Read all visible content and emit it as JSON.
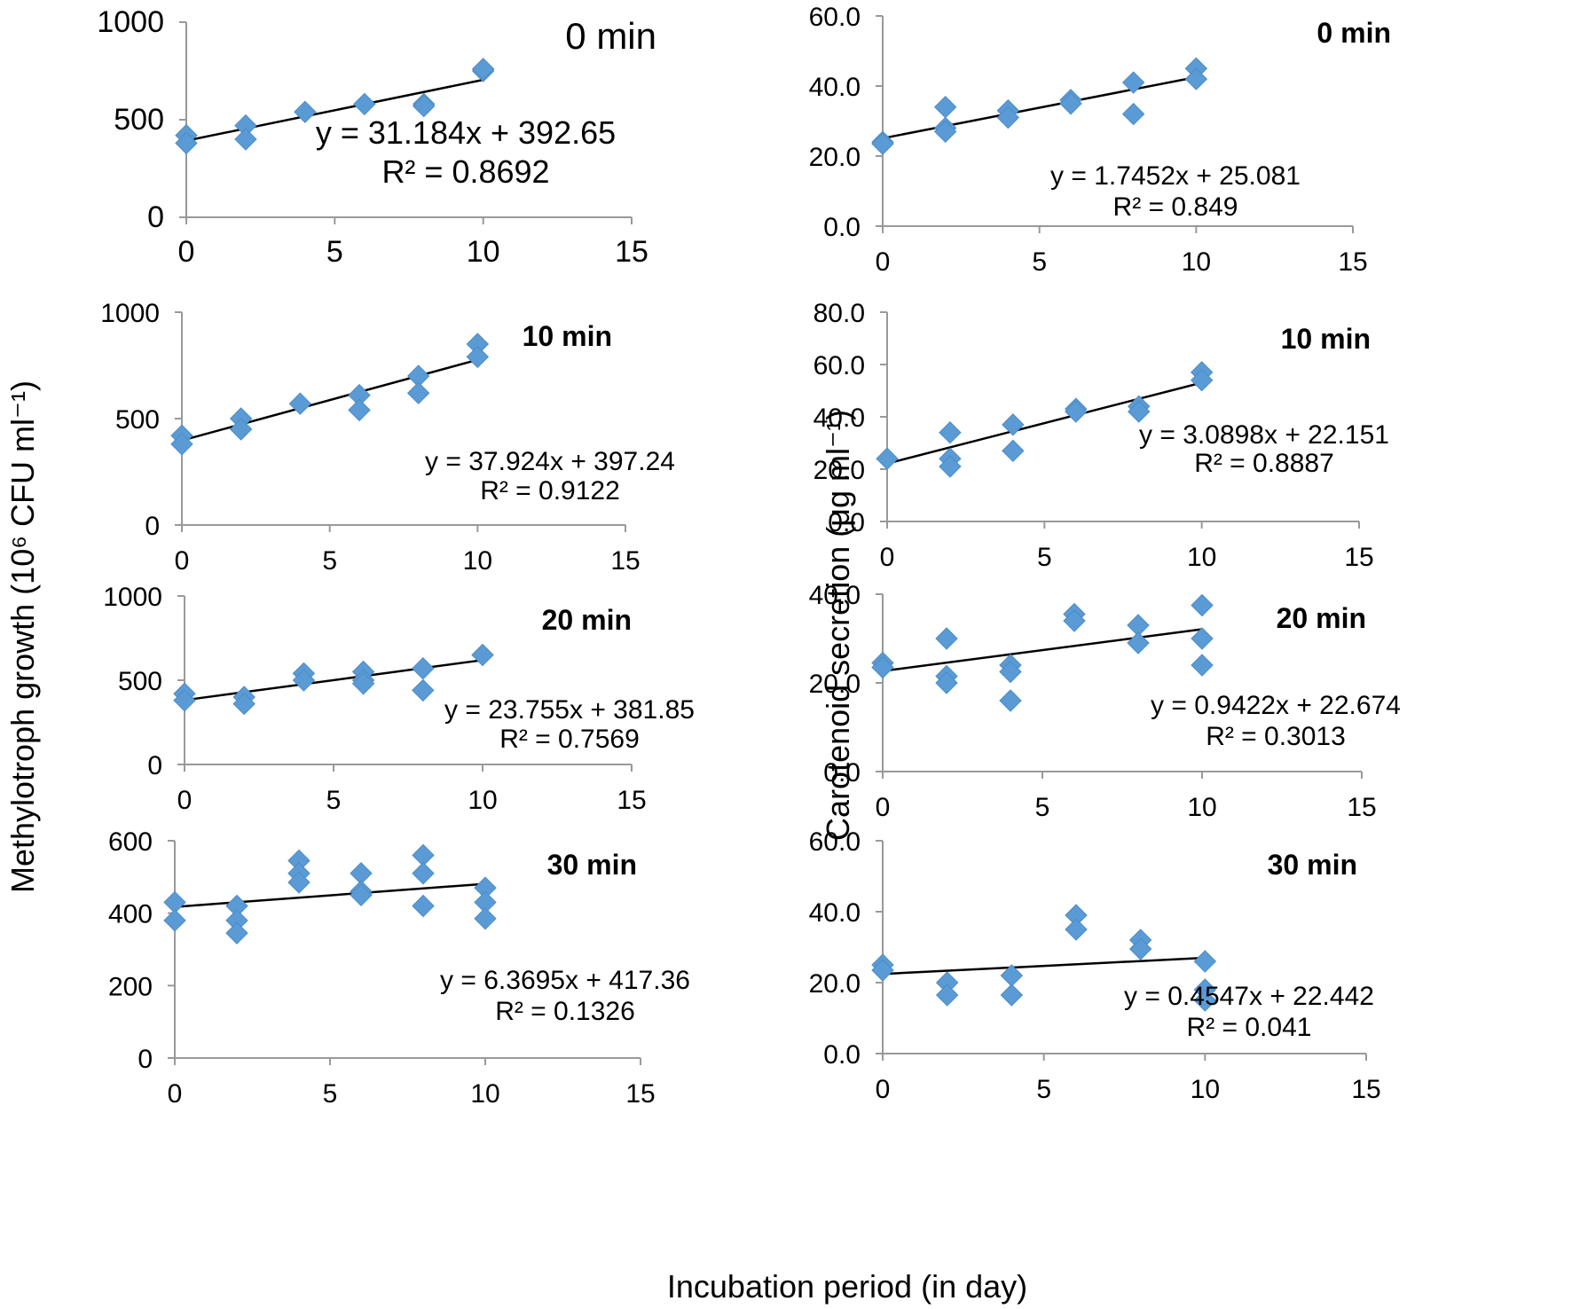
{
  "chart_data": {
    "type": "scatter",
    "shared_labels": {
      "xlabel": "Incubation period (in day)",
      "ylabel_left": "Methylotroph growth (10⁶ CFU ml⁻¹)",
      "ylabel_right": "Carotenoid secretion (μg ml⁻¹)"
    },
    "marker_color": "#5b9bd5",
    "trendline_color": "#000000",
    "panels": [
      {
        "id": "growth-0",
        "title": "0 min",
        "xlim": [
          0,
          15
        ],
        "xticks": [
          "0",
          "5",
          "10",
          "15"
        ],
        "ylim": [
          0,
          1000
        ],
        "yticks": [
          "0",
          "500",
          "1000"
        ],
        "points": [
          [
            0,
            420
          ],
          [
            0,
            380
          ],
          [
            2,
            470
          ],
          [
            2,
            400
          ],
          [
            4,
            540
          ],
          [
            6,
            580
          ],
          [
            8,
            580
          ],
          [
            8,
            570
          ],
          [
            10,
            750
          ],
          [
            10,
            760
          ]
        ],
        "fit": {
          "slope": 31.184,
          "intercept": 392.65
        },
        "equation": "y = 31.184x + 392.65",
        "r2_label": "R² = 0.8692"
      },
      {
        "id": "carotenoid-0",
        "title": "0 min",
        "xlim": [
          0,
          15
        ],
        "xticks": [
          "0",
          "5",
          "10",
          "15"
        ],
        "ylim": [
          0,
          60
        ],
        "yticks": [
          "0.0",
          "20.0",
          "40.0",
          "60.0"
        ],
        "points": [
          [
            0,
            24
          ],
          [
            0,
            23.5
          ],
          [
            2,
            34
          ],
          [
            2,
            28
          ],
          [
            2,
            27
          ],
          [
            4,
            33
          ],
          [
            4,
            31
          ],
          [
            6,
            36
          ],
          [
            6,
            35
          ],
          [
            8,
            41
          ],
          [
            8,
            32
          ],
          [
            10,
            45
          ],
          [
            10,
            42
          ]
        ],
        "fit": {
          "slope": 1.7452,
          "intercept": 25.081
        },
        "equation": "y = 1.7452x + 25.081",
        "r2_label": "R² = 0.849"
      },
      {
        "id": "growth-10",
        "title": "10 min",
        "xlim": [
          0,
          15
        ],
        "xticks": [
          "0",
          "5",
          "10",
          "15"
        ],
        "ylim": [
          0,
          1000
        ],
        "yticks": [
          "0",
          "500",
          "1000"
        ],
        "points": [
          [
            0,
            420
          ],
          [
            0,
            380
          ],
          [
            2,
            500
          ],
          [
            2,
            450
          ],
          [
            4,
            570
          ],
          [
            6,
            610
          ],
          [
            6,
            540
          ],
          [
            8,
            700
          ],
          [
            8,
            620
          ],
          [
            10,
            850
          ],
          [
            10,
            790
          ]
        ],
        "fit": {
          "slope": 37.924,
          "intercept": 397.24
        },
        "equation": "y = 37.924x + 397.24",
        "r2_label": "R² = 0.9122"
      },
      {
        "id": "carotenoid-10",
        "title": "10 min",
        "xlim": [
          0,
          15
        ],
        "xticks": [
          "0",
          "5",
          "10",
          "15"
        ],
        "ylim": [
          0,
          80
        ],
        "yticks": [
          "0.0",
          "20.0",
          "40.0",
          "60.0",
          "80.0"
        ],
        "points": [
          [
            0,
            24
          ],
          [
            2,
            34
          ],
          [
            2,
            24
          ],
          [
            2,
            21
          ],
          [
            4,
            37
          ],
          [
            4,
            27
          ],
          [
            6,
            43
          ],
          [
            6,
            42
          ],
          [
            8,
            44
          ],
          [
            8,
            42
          ],
          [
            10,
            57
          ],
          [
            10,
            54
          ]
        ],
        "fit": {
          "slope": 3.0898,
          "intercept": 22.151
        },
        "equation": "y = 3.0898x + 22.151",
        "r2_label": "R² = 0.8887"
      },
      {
        "id": "growth-20",
        "title": "20 min",
        "xlim": [
          0,
          15
        ],
        "xticks": [
          "0",
          "5",
          "10",
          "15"
        ],
        "ylim": [
          0,
          1000
        ],
        "yticks": [
          "0",
          "500",
          "1000"
        ],
        "points": [
          [
            0,
            420
          ],
          [
            0,
            380
          ],
          [
            2,
            400
          ],
          [
            2,
            360
          ],
          [
            4,
            540
          ],
          [
            4,
            500
          ],
          [
            6,
            550
          ],
          [
            6,
            500
          ],
          [
            6,
            480
          ],
          [
            8,
            570
          ],
          [
            8,
            440
          ],
          [
            10,
            650
          ]
        ],
        "fit": {
          "slope": 23.755,
          "intercept": 381.85
        },
        "equation": "y = 23.755x + 381.85",
        "r2_label": "R² = 0.7569"
      },
      {
        "id": "carotenoid-20",
        "title": "20 min",
        "xlim": [
          0,
          15
        ],
        "xticks": [
          "0",
          "5",
          "10",
          "15"
        ],
        "ylim": [
          0,
          40
        ],
        "yticks": [
          "0.0",
          "20.0",
          "40.0"
        ],
        "points": [
          [
            0,
            24.5
          ],
          [
            0,
            23.5
          ],
          [
            2,
            30
          ],
          [
            2,
            21.5
          ],
          [
            2,
            20
          ],
          [
            4,
            24
          ],
          [
            4,
            22.5
          ],
          [
            4,
            16
          ],
          [
            6,
            35.5
          ],
          [
            6,
            34
          ],
          [
            8,
            33
          ],
          [
            8,
            29
          ],
          [
            10,
            37.5
          ],
          [
            10,
            30
          ],
          [
            10,
            24
          ]
        ],
        "fit": {
          "slope": 0.9422,
          "intercept": 22.674
        },
        "equation": "y = 0.9422x + 22.674",
        "r2_label": "R² = 0.3013"
      },
      {
        "id": "growth-30",
        "title": "30 min",
        "xlim": [
          0,
          15
        ],
        "xticks": [
          "0",
          "5",
          "10",
          "15"
        ],
        "ylim": [
          0,
          600
        ],
        "yticks": [
          "0",
          "200",
          "400",
          "600"
        ],
        "points": [
          [
            0,
            430
          ],
          [
            0,
            380
          ],
          [
            2,
            420
          ],
          [
            2,
            380
          ],
          [
            2,
            345
          ],
          [
            4,
            545
          ],
          [
            4,
            510
          ],
          [
            4,
            485
          ],
          [
            6,
            510
          ],
          [
            6,
            460
          ],
          [
            6,
            450
          ],
          [
            8,
            560
          ],
          [
            8,
            510
          ],
          [
            8,
            420
          ],
          [
            10,
            470
          ],
          [
            10,
            430
          ],
          [
            10,
            385
          ]
        ],
        "fit": {
          "slope": 6.3695,
          "intercept": 417.36
        },
        "equation": "y = 6.3695x + 417.36",
        "r2_label": "R² = 0.1326"
      },
      {
        "id": "carotenoid-30",
        "title": "30 min",
        "xlim": [
          0,
          15
        ],
        "xticks": [
          "0",
          "5",
          "10",
          "15"
        ],
        "ylim": [
          0,
          60
        ],
        "yticks": [
          "0.0",
          "20.0",
          "40.0",
          "60.0"
        ],
        "points": [
          [
            0,
            25
          ],
          [
            0,
            23.5
          ],
          [
            2,
            20
          ],
          [
            2,
            16.5
          ],
          [
            4,
            22
          ],
          [
            4,
            16.5
          ],
          [
            6,
            39
          ],
          [
            6,
            35
          ],
          [
            8,
            32
          ],
          [
            8,
            29.5
          ],
          [
            10,
            26
          ],
          [
            10,
            18
          ],
          [
            10,
            15
          ]
        ],
        "fit": {
          "slope": 0.4547,
          "intercept": 22.442
        },
        "equation": "y = 0.4547x + 22.442",
        "r2_label": "R² = 0.041"
      }
    ]
  }
}
